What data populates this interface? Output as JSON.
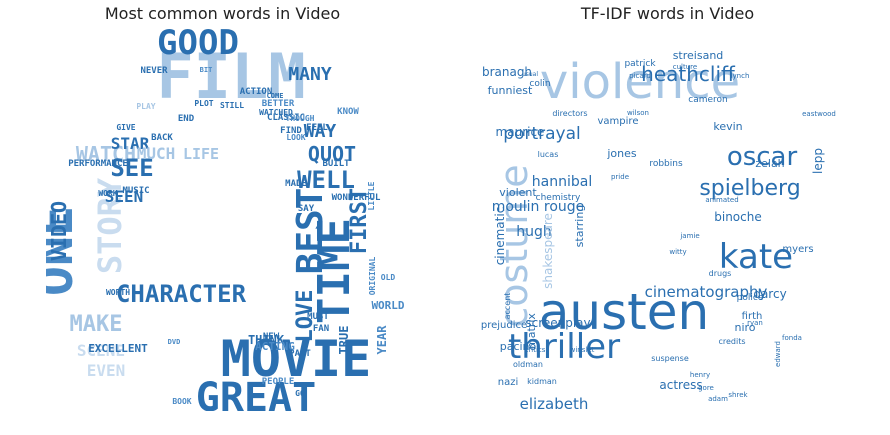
{
  "colors": {
    "dark": "#2a6fb0",
    "mid": "#4a8ac6",
    "light": "#a7c6e4",
    "pale": "#c9dcef"
  },
  "panels": {
    "left": {
      "title": "Most common words in Video"
    },
    "right": {
      "title": "TF-IDF words in Video"
    }
  },
  "clouds": {
    "left": [
      {
        "text": "FILM",
        "size": 62,
        "tone": "light",
        "rot": 0
      },
      {
        "text": "MOVIE",
        "size": 50,
        "tone": "dark",
        "rot": 0
      },
      {
        "text": "GREAT",
        "size": 40,
        "tone": "dark",
        "rot": 0
      },
      {
        "text": "ONE",
        "size": 50,
        "tone": "mid",
        "rot": -90
      },
      {
        "text": "GOOD",
        "size": 34,
        "tone": "dark",
        "rot": 0
      },
      {
        "text": "TIME",
        "size": 44,
        "tone": "dark",
        "rot": -90
      },
      {
        "text": "BEST",
        "size": 36,
        "tone": "dark",
        "rot": -90
      },
      {
        "text": "STORY",
        "size": 32,
        "tone": "pale",
        "rot": -90
      },
      {
        "text": "CHARACTER",
        "size": 24,
        "tone": "dark",
        "rot": 0
      },
      {
        "text": "WELL",
        "size": 24,
        "tone": "dark",
        "rot": 0
      },
      {
        "text": "WATCH",
        "size": 20,
        "tone": "light",
        "rot": 0
      },
      {
        "text": "QUOT",
        "size": 20,
        "tone": "dark",
        "rot": 0
      },
      {
        "text": "SEE",
        "size": 24,
        "tone": "dark",
        "rot": 0
      },
      {
        "text": "MAKE",
        "size": 22,
        "tone": "light",
        "rot": 0
      },
      {
        "text": "REALLY",
        "size": 20,
        "tone": "mid",
        "rot": 0
      },
      {
        "text": "LOVE",
        "size": 22,
        "tone": "dark",
        "rot": -90
      },
      {
        "text": "FIRST",
        "size": 22,
        "tone": "dark",
        "rot": -90
      },
      {
        "text": "VIDEO",
        "size": 20,
        "tone": "dark",
        "rot": -90
      },
      {
        "text": "SCENE",
        "size": 16,
        "tone": "pale",
        "rot": 0
      },
      {
        "text": "EVEN",
        "size": 16,
        "tone": "pale",
        "rot": 0
      },
      {
        "text": "MANY",
        "size": 18,
        "tone": "dark",
        "rot": 0
      },
      {
        "text": "WAY",
        "size": 18,
        "tone": "dark",
        "rot": 0
      },
      {
        "text": "STAR",
        "size": 16,
        "tone": "dark",
        "rot": 0
      },
      {
        "text": "MUCH",
        "size": 16,
        "tone": "light",
        "rot": 0
      },
      {
        "text": "LIFE",
        "size": 15,
        "tone": "light",
        "rot": 0
      },
      {
        "text": "SEEN",
        "size": 16,
        "tone": "dark",
        "rot": 0
      },
      {
        "text": "EXCELLENT",
        "size": 11,
        "tone": "dark",
        "rot": 0
      },
      {
        "text": "THINK",
        "size": 12,
        "tone": "dark",
        "rot": 0
      },
      {
        "text": "ACTING",
        "size": 11,
        "tone": "mid",
        "rot": 0
      },
      {
        "text": "WORLD",
        "size": 11,
        "tone": "mid",
        "rot": 0
      },
      {
        "text": "TRUE",
        "size": 12,
        "tone": "dark",
        "rot": -90
      },
      {
        "text": "YEAR",
        "size": 12,
        "tone": "mid",
        "rot": -90
      },
      {
        "text": "PERFORMANCE",
        "size": 9,
        "tone": "dark",
        "rot": 0
      },
      {
        "text": "MUSIC",
        "size": 9,
        "tone": "dark",
        "rot": 0
      },
      {
        "text": "WONDERFUL",
        "size": 9,
        "tone": "dark",
        "rot": 0
      },
      {
        "text": "BUILT",
        "size": 9,
        "tone": "dark",
        "rot": 0
      },
      {
        "text": "PEOPLE",
        "size": 9,
        "tone": "mid",
        "rot": 0
      },
      {
        "text": "WORTH",
        "size": 8,
        "tone": "dark",
        "rot": 0
      },
      {
        "text": "FIND",
        "size": 9,
        "tone": "dark",
        "rot": 0
      },
      {
        "text": "BACK",
        "size": 9,
        "tone": "dark",
        "rot": 0
      },
      {
        "text": "END",
        "size": 9,
        "tone": "dark",
        "rot": 0
      },
      {
        "text": "NEVER",
        "size": 9,
        "tone": "dark",
        "rot": 0
      },
      {
        "text": "ACTION",
        "size": 9,
        "tone": "dark",
        "rot": 0
      },
      {
        "text": "CLASSIC",
        "size": 9,
        "tone": "dark",
        "rot": 0
      },
      {
        "text": "BETTER",
        "size": 9,
        "tone": "mid",
        "rot": 0
      },
      {
        "text": "KNOW",
        "size": 9,
        "tone": "mid",
        "rot": 0
      },
      {
        "text": "FEEL",
        "size": 9,
        "tone": "dark",
        "rot": 0
      },
      {
        "text": "NEW",
        "size": 9,
        "tone": "dark",
        "rot": 0
      },
      {
        "text": "PART",
        "size": 9,
        "tone": "dark",
        "rot": 0
      },
      {
        "text": "MUST",
        "size": 9,
        "tone": "dark",
        "rot": 0
      },
      {
        "text": "FAN",
        "size": 9,
        "tone": "dark",
        "rot": 0
      },
      {
        "text": "ACTOR",
        "size": 9,
        "tone": "mid",
        "rot": 0
      },
      {
        "text": "SAY",
        "size": 9,
        "tone": "dark",
        "rot": 0
      },
      {
        "text": "MADE",
        "size": 9,
        "tone": "dark",
        "rot": 0
      },
      {
        "text": "PLOT",
        "size": 8,
        "tone": "dark",
        "rot": 0
      },
      {
        "text": "PLAY",
        "size": 8,
        "tone": "light",
        "rot": 0
      },
      {
        "text": "STILL",
        "size": 8,
        "tone": "dark",
        "rot": 0
      },
      {
        "text": "WATCHED",
        "size": 8,
        "tone": "dark",
        "rot": 0
      },
      {
        "text": "THOUGH",
        "size": 8,
        "tone": "mid",
        "rot": 0
      },
      {
        "text": "LITTLE",
        "size": 8,
        "tone": "mid",
        "rot": -90
      },
      {
        "text": "ORIGINAL",
        "size": 8,
        "tone": "mid",
        "rot": -90
      },
      {
        "text": "GO",
        "size": 8,
        "tone": "dark",
        "rot": 0
      },
      {
        "text": "TWO",
        "size": 8,
        "tone": "dark",
        "rot": 0
      },
      {
        "text": "DVD",
        "size": 7,
        "tone": "mid",
        "rot": 0
      },
      {
        "text": "GIVE",
        "size": 8,
        "tone": "dark",
        "rot": 0
      },
      {
        "text": "WORK",
        "size": 8,
        "tone": "dark",
        "rot": 0
      },
      {
        "text": "OLD",
        "size": 8,
        "tone": "mid",
        "rot": 0
      },
      {
        "text": "BOOK",
        "size": 8,
        "tone": "mid",
        "rot": 0
      },
      {
        "text": "LOOK",
        "size": 8,
        "tone": "mid",
        "rot": 0
      },
      {
        "text": "COME",
        "size": 7,
        "tone": "dark",
        "rot": 0
      },
      {
        "text": "BIT",
        "size": 7,
        "tone": "mid",
        "rot": 0
      }
    ],
    "right": [
      {
        "text": "violence",
        "size": 48,
        "tone": "light",
        "rot": 0
      },
      {
        "text": "austen",
        "size": 50,
        "tone": "dark",
        "rot": 0
      },
      {
        "text": "thriller",
        "size": 34,
        "tone": "dark",
        "rot": 0
      },
      {
        "text": "costume",
        "size": 38,
        "tone": "light",
        "rot": -90
      },
      {
        "text": "kate",
        "size": 34,
        "tone": "dark",
        "rot": 0
      },
      {
        "text": "oscar",
        "size": 26,
        "tone": "dark",
        "rot": 0
      },
      {
        "text": "spielberg",
        "size": 22,
        "tone": "dark",
        "rot": 0
      },
      {
        "text": "heathcliff",
        "size": 20,
        "tone": "dark",
        "rot": 0
      },
      {
        "text": "cinematography",
        "size": 15,
        "tone": "dark",
        "rot": 0
      },
      {
        "text": "portrayal",
        "size": 17,
        "tone": "dark",
        "rot": 0
      },
      {
        "text": "elizabeth",
        "size": 15,
        "tone": "dark",
        "rot": 0
      },
      {
        "text": "hannibal",
        "size": 14,
        "tone": "dark",
        "rot": 0
      },
      {
        "text": "moulin rouge",
        "size": 14,
        "tone": "dark",
        "rot": 0
      },
      {
        "text": "screenplay",
        "size": 12,
        "tone": "dark",
        "rot": 0
      },
      {
        "text": "prejudice",
        "size": 10,
        "tone": "dark",
        "rot": 0
      },
      {
        "text": "binoche",
        "size": 12,
        "tone": "dark",
        "rot": 0
      },
      {
        "text": "darcy",
        "size": 12,
        "tone": "dark",
        "rot": 0
      },
      {
        "text": "branagh",
        "size": 12,
        "tone": "dark",
        "rot": 0
      },
      {
        "text": "streisand",
        "size": 11,
        "tone": "dark",
        "rot": 0
      },
      {
        "text": "hugh",
        "size": 14,
        "tone": "dark",
        "rot": 0
      },
      {
        "text": "kevin",
        "size": 11,
        "tone": "dark",
        "rot": 0
      },
      {
        "text": "violent",
        "size": 11,
        "tone": "dark",
        "rot": 0
      },
      {
        "text": "maurice",
        "size": 12,
        "tone": "dark",
        "rot": 0
      },
      {
        "text": "funniest",
        "size": 11,
        "tone": "dark",
        "rot": 0
      },
      {
        "text": "jones",
        "size": 11,
        "tone": "dark",
        "rot": 0
      },
      {
        "text": "zelah",
        "size": 11,
        "tone": "dark",
        "rot": 0
      },
      {
        "text": "actress",
        "size": 12,
        "tone": "dark",
        "rot": 0
      },
      {
        "text": "pacino",
        "size": 11,
        "tone": "dark",
        "rot": 0
      },
      {
        "text": "firth",
        "size": 10,
        "tone": "dark",
        "rot": 0
      },
      {
        "text": "niro",
        "size": 11,
        "tone": "dark",
        "rot": 0
      },
      {
        "text": "vampire",
        "size": 10,
        "tone": "dark",
        "rot": 0
      },
      {
        "text": "nazi",
        "size": 10,
        "tone": "dark",
        "rot": 0
      },
      {
        "text": "cinematic",
        "size": 12,
        "tone": "dark",
        "rot": -90
      },
      {
        "text": "shakespeare",
        "size": 12,
        "tone": "light",
        "rot": -90
      },
      {
        "text": "matrix",
        "size": 11,
        "tone": "dark",
        "rot": -90
      },
      {
        "text": "starring",
        "size": 11,
        "tone": "dark",
        "rot": -90
      },
      {
        "text": "lepp",
        "size": 12,
        "tone": "dark",
        "rot": -90
      },
      {
        "text": "myers",
        "size": 10,
        "tone": "dark",
        "rot": 0
      },
      {
        "text": "robbins",
        "size": 9,
        "tone": "dark",
        "rot": 0
      },
      {
        "text": "police",
        "size": 9,
        "tone": "dark",
        "rot": 0
      },
      {
        "text": "cameron",
        "size": 9,
        "tone": "dark",
        "rot": 0
      },
      {
        "text": "patrick",
        "size": 9,
        "tone": "dark",
        "rot": 0
      },
      {
        "text": "colin",
        "size": 9,
        "tone": "dark",
        "rot": 0
      },
      {
        "text": "chemistry",
        "size": 9,
        "tone": "dark",
        "rot": 0
      },
      {
        "text": "credits",
        "size": 8,
        "tone": "dark",
        "rot": 0
      },
      {
        "text": "suspense",
        "size": 8,
        "tone": "dark",
        "rot": 0
      },
      {
        "text": "oldman",
        "size": 8,
        "tone": "dark",
        "rot": 0
      },
      {
        "text": "kidman",
        "size": 8,
        "tone": "dark",
        "rot": 0
      },
      {
        "text": "drugs",
        "size": 8,
        "tone": "dark",
        "rot": 0
      },
      {
        "text": "lucas",
        "size": 8,
        "tone": "dark",
        "rot": 0
      },
      {
        "text": "accent",
        "size": 8,
        "tone": "dark",
        "rot": -90
      },
      {
        "text": "directors",
        "size": 8,
        "tone": "dark",
        "rot": 0
      },
      {
        "text": "picard",
        "size": 7,
        "tone": "dark",
        "rot": 0
      },
      {
        "text": "lynch",
        "size": 7,
        "tone": "dark",
        "rot": 0
      },
      {
        "text": "culture",
        "size": 7,
        "tone": "dark",
        "rot": 0
      },
      {
        "text": "wilson",
        "size": 7,
        "tone": "dark",
        "rot": 0
      },
      {
        "text": "pride",
        "size": 7,
        "tone": "dark",
        "rot": 0
      },
      {
        "text": "jamie",
        "size": 7,
        "tone": "dark",
        "rot": 0
      },
      {
        "text": "witty",
        "size": 7,
        "tone": "dark",
        "rot": 0
      },
      {
        "text": "critics",
        "size": 7,
        "tone": "dark",
        "rot": 0
      },
      {
        "text": "henry",
        "size": 7,
        "tone": "dark",
        "rot": 0
      },
      {
        "text": "gore",
        "size": 7,
        "tone": "dark",
        "rot": 0
      },
      {
        "text": "shrek",
        "size": 7,
        "tone": "dark",
        "rot": 0
      },
      {
        "text": "animated",
        "size": 7,
        "tone": "dark",
        "rot": 0
      },
      {
        "text": "eastwood",
        "size": 7,
        "tone": "dark",
        "rot": 0
      },
      {
        "text": "winslet",
        "size": 7,
        "tone": "dark",
        "rot": 0
      },
      {
        "text": "edward",
        "size": 7,
        "tone": "dark",
        "rot": -90
      },
      {
        "text": "fonda",
        "size": 7,
        "tone": "dark",
        "rot": 0
      },
      {
        "text": "ryan",
        "size": 7,
        "tone": "dark",
        "rot": 0
      },
      {
        "text": "adam",
        "size": 7,
        "tone": "dark",
        "rot": 0
      },
      {
        "text": "usual",
        "size": 6,
        "tone": "dark",
        "rot": 0
      }
    ]
  }
}
